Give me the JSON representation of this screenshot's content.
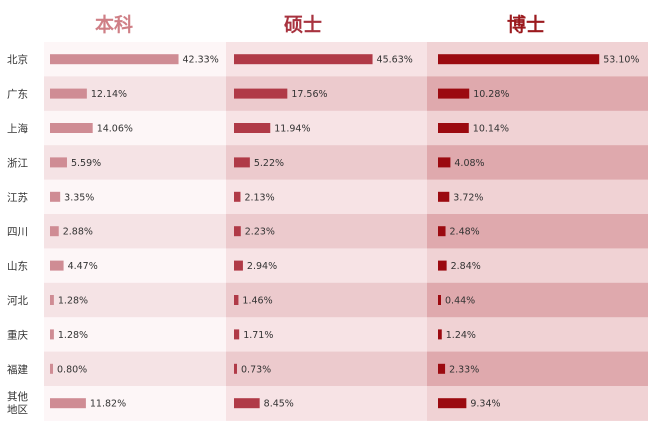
{
  "chart_data": {
    "type": "bar",
    "categories": [
      "北京",
      "广东",
      "上海",
      "浙江",
      "江苏",
      "四川",
      "山东",
      "河北",
      "重庆",
      "福建",
      "其他地区"
    ],
    "category_lines": [
      [
        "北京"
      ],
      [
        "广东"
      ],
      [
        "上海"
      ],
      [
        "浙江"
      ],
      [
        "江苏"
      ],
      [
        "四川"
      ],
      [
        "山东"
      ],
      [
        "河北"
      ],
      [
        "重庆"
      ],
      [
        "福建"
      ],
      [
        "其他",
        "地区"
      ]
    ],
    "series": [
      {
        "name": "本科",
        "values": [
          42.33,
          12.14,
          14.06,
          5.59,
          3.35,
          2.88,
          4.47,
          1.28,
          1.28,
          0.8,
          11.82
        ],
        "labels": [
          "42.33%",
          "12.14%",
          "14.06%",
          "5.59%",
          "3.35%",
          "2.88%",
          "4.47%",
          "1.28%",
          "1.28%",
          "0.80%",
          "11.82%"
        ],
        "bar_color": "#cf8c94",
        "header_color": "#cf7f86",
        "band_light": "#fdf6f7",
        "band_dark": "#f5e3e5"
      },
      {
        "name": "硕士",
        "values": [
          45.63,
          17.56,
          11.94,
          5.22,
          2.13,
          2.23,
          2.94,
          1.46,
          1.71,
          0.73,
          8.45
        ],
        "labels": [
          "45.63%",
          "17.56%",
          "11.94%",
          "5.22%",
          "2.13%",
          "2.23%",
          "2.94%",
          "1.46%",
          "1.71%",
          "0.73%",
          "8.45%"
        ],
        "bar_color": "#b03a47",
        "header_color": "#a8333f",
        "band_light": "#f7e3e5",
        "band_dark": "#eccacd"
      },
      {
        "name": "博士",
        "values": [
          53.1,
          10.28,
          10.14,
          4.08,
          3.72,
          2.48,
          2.84,
          0.44,
          1.24,
          2.33,
          9.34
        ],
        "labels": [
          "53.10%",
          "10.28%",
          "10.14%",
          "4.08%",
          "3.72%",
          "2.48%",
          "2.84%",
          "0.44%",
          "1.24%",
          "2.33%",
          "9.34%"
        ],
        "bar_color": "#9b0a10",
        "header_color": "#9b1a1e",
        "band_light": "#f0d2d4",
        "band_dark": "#dfa9ad"
      }
    ],
    "value_max": 55
  }
}
